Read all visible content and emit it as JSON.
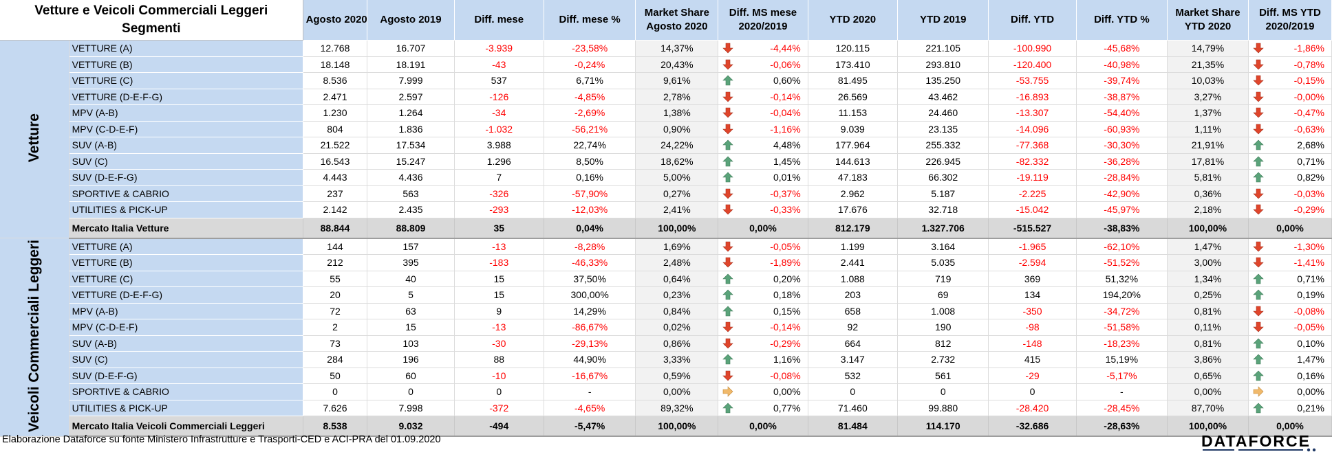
{
  "title_line1": "Vetture e Veicoli Commerciali Leggeri",
  "title_line2": "Segmenti",
  "columns": [
    [
      "Agosto 2020"
    ],
    [
      "Agosto 2019"
    ],
    [
      "Diff. mese"
    ],
    [
      "Diff. mese %"
    ],
    [
      "Market Share",
      "Agosto 2020"
    ],
    [
      "Diff. MS mese",
      "2020/2019"
    ],
    [
      "YTD 2020"
    ],
    [
      "YTD 2019"
    ],
    [
      "Diff. YTD"
    ],
    [
      "Diff. YTD %"
    ],
    [
      "Market Share",
      "YTD 2020"
    ],
    [
      "Diff. MS YTD",
      "2020/2019"
    ]
  ],
  "colors": {
    "header_bg": "#c5d9f1",
    "negative": "#ff0000",
    "up": "#5aa37a",
    "down": "#e0452b",
    "flat": "#f0b96b",
    "total_bg": "#d9d9d9"
  },
  "groups": [
    {
      "label": "Vetture",
      "rows": [
        {
          "segment": "VETTURE (A)",
          "values": [
            "12.768",
            "16.707",
            "-3.939",
            "-23,58%",
            "14,37%",
            "-4,44%",
            "120.115",
            "221.105",
            "-100.990",
            "-45,68%",
            "14,79%",
            "-1,86%"
          ],
          "ms_month_trend": "down",
          "ms_ytd_trend": "down"
        },
        {
          "segment": "VETTURE (B)",
          "values": [
            "18.148",
            "18.191",
            "-43",
            "-0,24%",
            "20,43%",
            "-0,06%",
            "173.410",
            "293.810",
            "-120.400",
            "-40,98%",
            "21,35%",
            "-0,78%"
          ],
          "ms_month_trend": "down",
          "ms_ytd_trend": "down"
        },
        {
          "segment": "VETTURE (C)",
          "values": [
            "8.536",
            "7.999",
            "537",
            "6,71%",
            "9,61%",
            "0,60%",
            "81.495",
            "135.250",
            "-53.755",
            "-39,74%",
            "10,03%",
            "-0,15%"
          ],
          "ms_month_trend": "up",
          "ms_ytd_trend": "down"
        },
        {
          "segment": "VETTURE (D-E-F-G)",
          "values": [
            "2.471",
            "2.597",
            "-126",
            "-4,85%",
            "2,78%",
            "-0,14%",
            "26.569",
            "43.462",
            "-16.893",
            "-38,87%",
            "3,27%",
            "-0,00%"
          ],
          "ms_month_trend": "down",
          "ms_ytd_trend": "down"
        },
        {
          "segment": "MPV (A-B)",
          "values": [
            "1.230",
            "1.264",
            "-34",
            "-2,69%",
            "1,38%",
            "-0,04%",
            "11.153",
            "24.460",
            "-13.307",
            "-54,40%",
            "1,37%",
            "-0,47%"
          ],
          "ms_month_trend": "down",
          "ms_ytd_trend": "down"
        },
        {
          "segment": "MPV (C-D-E-F)",
          "values": [
            "804",
            "1.836",
            "-1.032",
            "-56,21%",
            "0,90%",
            "-1,16%",
            "9.039",
            "23.135",
            "-14.096",
            "-60,93%",
            "1,11%",
            "-0,63%"
          ],
          "ms_month_trend": "down",
          "ms_ytd_trend": "down"
        },
        {
          "segment": "SUV (A-B)",
          "values": [
            "21.522",
            "17.534",
            "3.988",
            "22,74%",
            "24,22%",
            "4,48%",
            "177.964",
            "255.332",
            "-77.368",
            "-30,30%",
            "21,91%",
            "2,68%"
          ],
          "ms_month_trend": "up",
          "ms_ytd_trend": "up"
        },
        {
          "segment": "SUV (C)",
          "values": [
            "16.543",
            "15.247",
            "1.296",
            "8,50%",
            "18,62%",
            "1,45%",
            "144.613",
            "226.945",
            "-82.332",
            "-36,28%",
            "17,81%",
            "0,71%"
          ],
          "ms_month_trend": "up",
          "ms_ytd_trend": "up"
        },
        {
          "segment": "SUV (D-E-F-G)",
          "values": [
            "4.443",
            "4.436",
            "7",
            "0,16%",
            "5,00%",
            "0,01%",
            "47.183",
            "66.302",
            "-19.119",
            "-28,84%",
            "5,81%",
            "0,82%"
          ],
          "ms_month_trend": "up",
          "ms_ytd_trend": "up"
        },
        {
          "segment": "SPORTIVE & CABRIO",
          "values": [
            "237",
            "563",
            "-326",
            "-57,90%",
            "0,27%",
            "-0,37%",
            "2.962",
            "5.187",
            "-2.225",
            "-42,90%",
            "0,36%",
            "-0,03%"
          ],
          "ms_month_trend": "down",
          "ms_ytd_trend": "down"
        },
        {
          "segment": "UTILITIES & PICK-UP",
          "values": [
            "2.142",
            "2.435",
            "-293",
            "-12,03%",
            "2,41%",
            "-0,33%",
            "17.676",
            "32.718",
            "-15.042",
            "-45,97%",
            "2,18%",
            "-0,29%"
          ],
          "ms_month_trend": "down",
          "ms_ytd_trend": "down"
        }
      ],
      "total": {
        "segment": "Mercato Italia Vetture",
        "values": [
          "88.844",
          "88.809",
          "35",
          "0,04%",
          "100,00%",
          "0,00%",
          "812.179",
          "1.327.706",
          "-515.527",
          "-38,83%",
          "100,00%",
          "0,00%"
        ]
      }
    },
    {
      "label": "Veicoli Commerciali Leggeri",
      "rows": [
        {
          "segment": "VETTURE (A)",
          "values": [
            "144",
            "157",
            "-13",
            "-8,28%",
            "1,69%",
            "-0,05%",
            "1.199",
            "3.164",
            "-1.965",
            "-62,10%",
            "1,47%",
            "-1,30%"
          ],
          "ms_month_trend": "down",
          "ms_ytd_trend": "down"
        },
        {
          "segment": "VETTURE (B)",
          "values": [
            "212",
            "395",
            "-183",
            "-46,33%",
            "2,48%",
            "-1,89%",
            "2.441",
            "5.035",
            "-2.594",
            "-51,52%",
            "3,00%",
            "-1,41%"
          ],
          "ms_month_trend": "down",
          "ms_ytd_trend": "down"
        },
        {
          "segment": "VETTURE (C)",
          "values": [
            "55",
            "40",
            "15",
            "37,50%",
            "0,64%",
            "0,20%",
            "1.088",
            "719",
            "369",
            "51,32%",
            "1,34%",
            "0,71%"
          ],
          "ms_month_trend": "up",
          "ms_ytd_trend": "up"
        },
        {
          "segment": "VETTURE (D-E-F-G)",
          "values": [
            "20",
            "5",
            "15",
            "300,00%",
            "0,23%",
            "0,18%",
            "203",
            "69",
            "134",
            "194,20%",
            "0,25%",
            "0,19%"
          ],
          "ms_month_trend": "up",
          "ms_ytd_trend": "up"
        },
        {
          "segment": "MPV (A-B)",
          "values": [
            "72",
            "63",
            "9",
            "14,29%",
            "0,84%",
            "0,15%",
            "658",
            "1.008",
            "-350",
            "-34,72%",
            "0,81%",
            "-0,08%"
          ],
          "ms_month_trend": "up",
          "ms_ytd_trend": "down"
        },
        {
          "segment": "MPV (C-D-E-F)",
          "values": [
            "2",
            "15",
            "-13",
            "-86,67%",
            "0,02%",
            "-0,14%",
            "92",
            "190",
            "-98",
            "-51,58%",
            "0,11%",
            "-0,05%"
          ],
          "ms_month_trend": "down",
          "ms_ytd_trend": "down"
        },
        {
          "segment": "SUV (A-B)",
          "values": [
            "73",
            "103",
            "-30",
            "-29,13%",
            "0,86%",
            "-0,29%",
            "664",
            "812",
            "-148",
            "-18,23%",
            "0,81%",
            "0,10%"
          ],
          "ms_month_trend": "down",
          "ms_ytd_trend": "up"
        },
        {
          "segment": "SUV (C)",
          "values": [
            "284",
            "196",
            "88",
            "44,90%",
            "3,33%",
            "1,16%",
            "3.147",
            "2.732",
            "415",
            "15,19%",
            "3,86%",
            "1,47%"
          ],
          "ms_month_trend": "up",
          "ms_ytd_trend": "up"
        },
        {
          "segment": "SUV (D-E-F-G)",
          "values": [
            "50",
            "60",
            "-10",
            "-16,67%",
            "0,59%",
            "-0,08%",
            "532",
            "561",
            "-29",
            "-5,17%",
            "0,65%",
            "0,16%"
          ],
          "ms_month_trend": "down",
          "ms_ytd_trend": "up"
        },
        {
          "segment": "SPORTIVE & CABRIO",
          "values": [
            "0",
            "0",
            "0",
            "-",
            "0,00%",
            "0,00%",
            "0",
            "0",
            "0",
            "-",
            "0,00%",
            "0,00%"
          ],
          "ms_month_trend": "flat",
          "ms_ytd_trend": "flat"
        },
        {
          "segment": "UTILITIES & PICK-UP",
          "values": [
            "7.626",
            "7.998",
            "-372",
            "-4,65%",
            "89,32%",
            "0,77%",
            "71.460",
            "99.880",
            "-28.420",
            "-28,45%",
            "87,70%",
            "0,21%"
          ],
          "ms_month_trend": "up",
          "ms_ytd_trend": "up"
        }
      ],
      "total": {
        "segment": "Mercato Italia Veicoli Commerciali Leggeri",
        "values": [
          "8.538",
          "9.032",
          "-494",
          "-5,47%",
          "100,00%",
          "0,00%",
          "81.484",
          "114.170",
          "-32.686",
          "-28,63%",
          "100,00%",
          "0,00%"
        ]
      }
    }
  ],
  "footer": "Elaborazione Dataforce su fonte Ministero Infrastrutture e Trasporti-CED e ACI-PRA del 01.09.2020",
  "logo": "DATAFORCE"
}
